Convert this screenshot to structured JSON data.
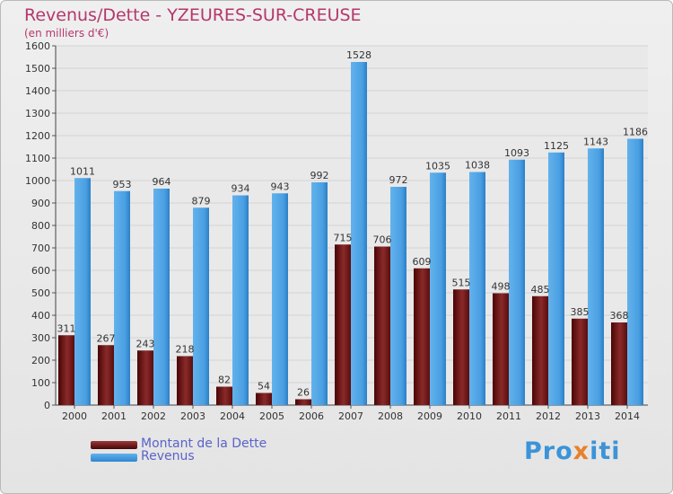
{
  "title": "Revenus/Dette - YZEURES-SUR-CREUSE",
  "subtitle": "(en milliers d'€)",
  "legend": {
    "debt_label": "Montant de la Dette",
    "revenue_label": "Revenus"
  },
  "logo": {
    "text_before": "Pro",
    "text_x": "x",
    "text_after": "iti"
  },
  "colors": {
    "debt": "#7a1f1f",
    "debt_dark": "#4d0606",
    "revenue": "#4ea3e4",
    "revenue_dark": "#2f86cf",
    "title": "#b5376b"
  },
  "chart_data": {
    "type": "bar",
    "title": "Revenus/Dette - YZEURES-SUR-CREUSE",
    "ylabel": "(en milliers d'€)",
    "xlabel": "",
    "ylim": [
      0,
      1600
    ],
    "yticks": [
      0,
      100,
      200,
      300,
      400,
      500,
      600,
      700,
      800,
      900,
      1000,
      1100,
      1200,
      1300,
      1400,
      1500,
      1600
    ],
    "grid": true,
    "categories": [
      "2000",
      "2001",
      "2002",
      "2003",
      "2004",
      "2005",
      "2006",
      "2007",
      "2008",
      "2009",
      "2010",
      "2011",
      "2012",
      "2013",
      "2014"
    ],
    "series": [
      {
        "name": "Montant de la Dette",
        "values": [
          311,
          267,
          243,
          218,
          82,
          54,
          26,
          715,
          706,
          609,
          515,
          498,
          485,
          385,
          368
        ]
      },
      {
        "name": "Revenus",
        "values": [
          1011,
          953,
          964,
          879,
          934,
          943,
          992,
          1528,
          972,
          1035,
          1038,
          1093,
          1125,
          1143,
          1186
        ]
      }
    ]
  }
}
